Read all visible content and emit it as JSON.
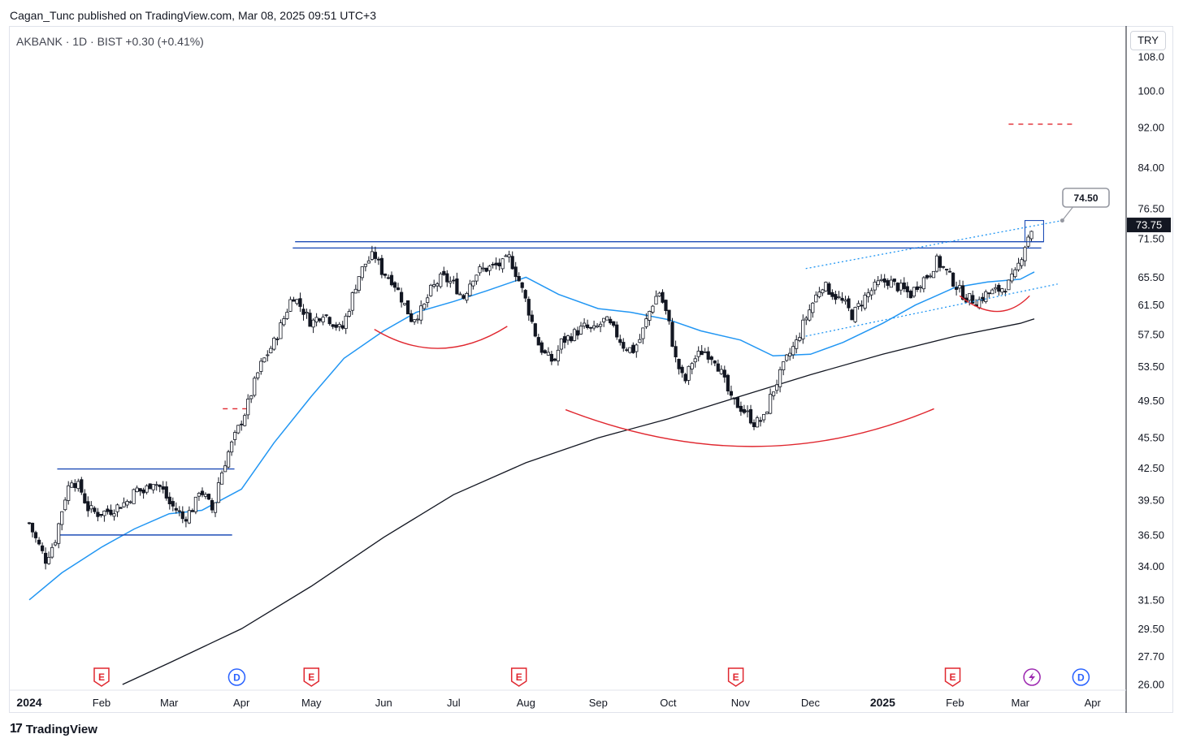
{
  "header": {
    "publisher": "Cagan_Tunc published on TradingView.com, Mar 08, 2025 09:51 UTC+3",
    "symbol_line": "AKBANK · 1D · BIST  +0.30 (+0.41%)",
    "currency": "TRY"
  },
  "footer": {
    "logo_text": "TradingView",
    "logo_mark": "17"
  },
  "colors": {
    "candle": "#131722",
    "ma_fast": "#2196f3",
    "ma_slow": "#131722",
    "level_lines": "#1e4db7",
    "arcs": "#e0272f",
    "targets": "#e0272f",
    "event_e": "#e0272f",
    "event_d": "#2962ff",
    "event_bolt": "#9c27b0"
  },
  "chart_data": {
    "type": "candlestick",
    "y_scale": "log",
    "ylim": [
      26.0,
      108.0
    ],
    "y_ticks": [
      "108.0",
      "100.0",
      "92.00",
      "84.00",
      "76.50",
      "71.50",
      "65.50",
      "61.50",
      "57.50",
      "53.50",
      "49.50",
      "45.50",
      "42.50",
      "39.50",
      "36.50",
      "34.00",
      "31.50",
      "29.50",
      "27.70",
      "26.00"
    ],
    "x_ticks": [
      "2024",
      "Feb",
      "Mar",
      "Apr",
      "May",
      "Jun",
      "Jul",
      "Aug",
      "Sep",
      "Oct",
      "Nov",
      "Dec",
      "2025",
      "Feb",
      "Mar",
      "Apr"
    ],
    "last_price": "73.75",
    "callout": "74.50",
    "close_path": [
      [
        "2024-01-01",
        37.5
      ],
      [
        "2024-01-03",
        36.5
      ],
      [
        "2024-01-08",
        34.5
      ],
      [
        "2024-01-12",
        36.0
      ],
      [
        "2024-01-16",
        39.5
      ],
      [
        "2024-01-19",
        41.5
      ],
      [
        "2024-01-23",
        40.5
      ],
      [
        "2024-01-26",
        38.8
      ],
      [
        "2024-01-30",
        38.3
      ],
      [
        "2024-02-05",
        38.6
      ],
      [
        "2024-02-12",
        39.4
      ],
      [
        "2024-02-16",
        40.5
      ],
      [
        "2024-02-19",
        40.2
      ],
      [
        "2024-02-23",
        41.3
      ],
      [
        "2024-02-27",
        40.5
      ],
      [
        "2024-03-01",
        39.2
      ],
      [
        "2024-03-05",
        38.5
      ],
      [
        "2024-03-07",
        37.8
      ],
      [
        "2024-03-12",
        39.0
      ],
      [
        "2024-03-14",
        40.6
      ],
      [
        "2024-03-18",
        39.2
      ],
      [
        "2024-03-20",
        38.4
      ],
      [
        "2024-03-22",
        41.0
      ],
      [
        "2024-03-26",
        43.8
      ],
      [
        "2024-03-29",
        45.5
      ],
      [
        "2024-04-03",
        48.5
      ],
      [
        "2024-04-09",
        53.5
      ],
      [
        "2024-04-15",
        56.5
      ],
      [
        "2024-04-19",
        59.5
      ],
      [
        "2024-04-23",
        63.0
      ],
      [
        "2024-04-26",
        61.5
      ],
      [
        "2024-05-01",
        59.0
      ],
      [
        "2024-05-06",
        60.5
      ],
      [
        "2024-05-09",
        59.5
      ],
      [
        "2024-05-14",
        58.0
      ],
      [
        "2024-05-17",
        61.0
      ],
      [
        "2024-05-21",
        65.5
      ],
      [
        "2024-05-24",
        67.5
      ],
      [
        "2024-05-28",
        69.0
      ],
      [
        "2024-05-31",
        66.5
      ],
      [
        "2024-06-05",
        65.0
      ],
      [
        "2024-06-10",
        61.5
      ],
      [
        "2024-06-13",
        59.5
      ],
      [
        "2024-06-18",
        61.0
      ],
      [
        "2024-06-21",
        63.5
      ],
      [
        "2024-06-26",
        65.5
      ],
      [
        "2024-07-01",
        64.5
      ],
      [
        "2024-07-05",
        62.5
      ],
      [
        "2024-07-09",
        65.5
      ],
      [
        "2024-07-12",
        66.5
      ],
      [
        "2024-07-17",
        67.0
      ],
      [
        "2024-07-22",
        67.5
      ],
      [
        "2024-07-25",
        68.5
      ],
      [
        "2024-07-29",
        65.0
      ],
      [
        "2024-08-01",
        62.0
      ],
      [
        "2024-08-06",
        56.5
      ],
      [
        "2024-08-09",
        55.0
      ],
      [
        "2024-08-13",
        54.0
      ],
      [
        "2024-08-16",
        56.5
      ],
      [
        "2024-08-21",
        57.5
      ],
      [
        "2024-08-26",
        58.5
      ],
      [
        "2024-08-30",
        58.0
      ],
      [
        "2024-09-04",
        59.5
      ],
      [
        "2024-09-09",
        57.5
      ],
      [
        "2024-09-12",
        56.0
      ],
      [
        "2024-09-16",
        55.5
      ],
      [
        "2024-09-19",
        57.0
      ],
      [
        "2024-09-24",
        61.5
      ],
      [
        "2024-09-27",
        63.5
      ],
      [
        "2024-10-01",
        59.5
      ],
      [
        "2024-10-04",
        54.5
      ],
      [
        "2024-10-08",
        51.5
      ],
      [
        "2024-10-11",
        54.0
      ],
      [
        "2024-10-16",
        55.5
      ],
      [
        "2024-10-21",
        54.5
      ],
      [
        "2024-10-24",
        52.5
      ],
      [
        "2024-10-28",
        49.5
      ],
      [
        "2024-10-31",
        49.0
      ],
      [
        "2024-11-04",
        48.0
      ],
      [
        "2024-11-07",
        47.0
      ],
      [
        "2024-11-11",
        47.5
      ],
      [
        "2024-11-14",
        50.0
      ],
      [
        "2024-11-18",
        52.5
      ],
      [
        "2024-11-21",
        54.5
      ],
      [
        "2024-11-25",
        56.5
      ],
      [
        "2024-11-28",
        59.0
      ],
      [
        "2024-12-03",
        62.5
      ],
      [
        "2024-12-06",
        64.5
      ],
      [
        "2024-12-11",
        63.0
      ],
      [
        "2024-12-16",
        61.5
      ],
      [
        "2024-12-19",
        60.0
      ],
      [
        "2024-12-24",
        62.5
      ],
      [
        "2024-12-30",
        64.5
      ],
      [
        "2025-01-03",
        65.0
      ],
      [
        "2025-01-08",
        64.0
      ],
      [
        "2025-01-13",
        63.0
      ],
      [
        "2025-01-16",
        64.5
      ],
      [
        "2025-01-21",
        66.0
      ],
      [
        "2025-01-24",
        68.0
      ],
      [
        "2025-01-28",
        66.5
      ],
      [
        "2025-02-03",
        63.5
      ],
      [
        "2025-02-06",
        62.5
      ],
      [
        "2025-02-11",
        62.0
      ],
      [
        "2025-02-14",
        63.0
      ],
      [
        "2025-02-19",
        63.5
      ],
      [
        "2025-02-24",
        64.5
      ],
      [
        "2025-02-27",
        66.0
      ],
      [
        "2025-03-03",
        70.5
      ],
      [
        "2025-03-05",
        72.5
      ],
      [
        "2025-03-07",
        73.75
      ]
    ],
    "ma_fast": [
      [
        "2024-01-01",
        31.5
      ],
      [
        "2024-01-15",
        33.5
      ],
      [
        "2024-02-01",
        35.5
      ],
      [
        "2024-02-15",
        37.0
      ],
      [
        "2024-03-01",
        38.3
      ],
      [
        "2024-03-15",
        38.6
      ],
      [
        "2024-04-01",
        40.5
      ],
      [
        "2024-04-15",
        45.0
      ],
      [
        "2024-05-01",
        50.0
      ],
      [
        "2024-05-15",
        54.5
      ],
      [
        "2024-06-01",
        58.0
      ],
      [
        "2024-06-15",
        60.5
      ],
      [
        "2024-07-01",
        62.0
      ],
      [
        "2024-07-15",
        63.5
      ],
      [
        "2024-08-01",
        65.5
      ],
      [
        "2024-08-15",
        63.0
      ],
      [
        "2024-09-01",
        61.0
      ],
      [
        "2024-09-15",
        60.5
      ],
      [
        "2024-10-01",
        59.5
      ],
      [
        "2024-10-15",
        58.0
      ],
      [
        "2024-11-01",
        56.8
      ],
      [
        "2024-11-15",
        54.8
      ],
      [
        "2024-12-01",
        55.0
      ],
      [
        "2024-12-15",
        56.5
      ],
      [
        "2025-01-01",
        59.0
      ],
      [
        "2025-01-15",
        61.5
      ],
      [
        "2025-02-01",
        64.0
      ],
      [
        "2025-02-15",
        64.8
      ],
      [
        "2025-03-01",
        65.2
      ],
      [
        "2025-03-07",
        66.3
      ]
    ],
    "ma_slow": [
      [
        "2024-02-10",
        26.0
      ],
      [
        "2024-03-01",
        27.3
      ],
      [
        "2024-04-01",
        29.5
      ],
      [
        "2024-05-01",
        32.5
      ],
      [
        "2024-06-01",
        36.3
      ],
      [
        "2024-07-01",
        40.0
      ],
      [
        "2024-08-01",
        43.0
      ],
      [
        "2024-09-01",
        45.5
      ],
      [
        "2024-10-01",
        47.5
      ],
      [
        "2024-11-01",
        50.0
      ],
      [
        "2024-12-01",
        52.5
      ],
      [
        "2025-01-01",
        55.0
      ],
      [
        "2025-02-01",
        57.3
      ],
      [
        "2025-03-01",
        59.0
      ],
      [
        "2025-03-07",
        59.6
      ]
    ],
    "levels": [
      {
        "y": 71.0,
        "x": [
          "2024-04-24",
          "2025-03-11"
        ]
      },
      {
        "y": 70.0,
        "x": [
          "2024-04-23",
          "2025-03-10"
        ]
      },
      {
        "y": 42.4,
        "x": [
          "2024-01-13",
          "2024-03-29"
        ]
      },
      {
        "y": 36.5,
        "x": [
          "2024-01-13",
          "2024-03-28"
        ]
      }
    ],
    "targets": [
      {
        "y": 48.6,
        "x": [
          "2024-03-24",
          "2024-04-05"
        ]
      },
      {
        "y": 92.7,
        "x": [
          "2025-02-24",
          "2025-03-24"
        ]
      }
    ],
    "events": [
      {
        "type": "E",
        "x": "2024-02-01"
      },
      {
        "type": "D",
        "x": "2024-03-30"
      },
      {
        "type": "E",
        "x": "2024-05-01"
      },
      {
        "type": "E",
        "x": "2024-07-29"
      },
      {
        "type": "E",
        "x": "2024-10-30"
      },
      {
        "type": "E",
        "x": "2025-01-31"
      },
      {
        "type": "bolt",
        "x": "2025-03-06"
      },
      {
        "type": "D",
        "x": "2025-03-27"
      }
    ]
  }
}
